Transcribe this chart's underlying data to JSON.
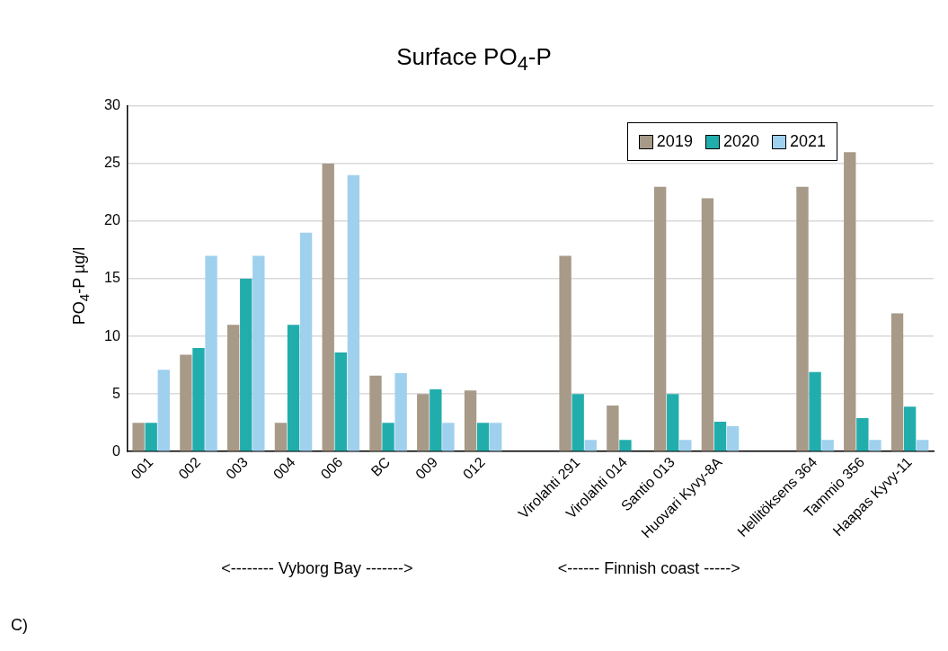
{
  "chart_data": {
    "type": "bar",
    "title": "Surface PO$_{4}$-P",
    "ylabel": "PO$_{4}$-P µg/l",
    "categories": [
      "001",
      "002",
      "003",
      "004",
      "006",
      "BC",
      "009",
      "012",
      null,
      "Virolahti 291",
      "Virolahti 014",
      "Santio 013",
      "Huovari Kyvy-8A",
      null,
      "Hellitöksens 364",
      "Tammio 356",
      "Haapas Kyvy-11"
    ],
    "series": [
      {
        "name": "2019",
        "color": "#a89a88",
        "values": [
          2.5,
          8.4,
          11,
          2.5,
          25,
          6.6,
          5,
          5.3,
          null,
          17,
          4,
          23,
          22,
          null,
          23,
          26,
          12
        ]
      },
      {
        "name": "2020",
        "color": "#22adad",
        "values": [
          2.5,
          9,
          15,
          11,
          8.6,
          2.5,
          5.4,
          2.5,
          null,
          5,
          1,
          5,
          2.6,
          null,
          6.9,
          2.9,
          3.9
        ]
      },
      {
        "name": "2021",
        "color": "#9fd0ee",
        "values": [
          7.1,
          17,
          17,
          19,
          24,
          6.8,
          2.5,
          2.5,
          null,
          1,
          null,
          1,
          2.2,
          null,
          1,
          1,
          1
        ]
      }
    ],
    "ylim": [
      0,
      30
    ],
    "yticks": [
      0,
      5,
      10,
      15,
      20,
      25,
      30
    ],
    "grid": "y",
    "legend": "top right",
    "annotations": [
      "<-------- Vyborg Bay ------->",
      "<------ Finnish coast ----->",
      "C)"
    ]
  }
}
